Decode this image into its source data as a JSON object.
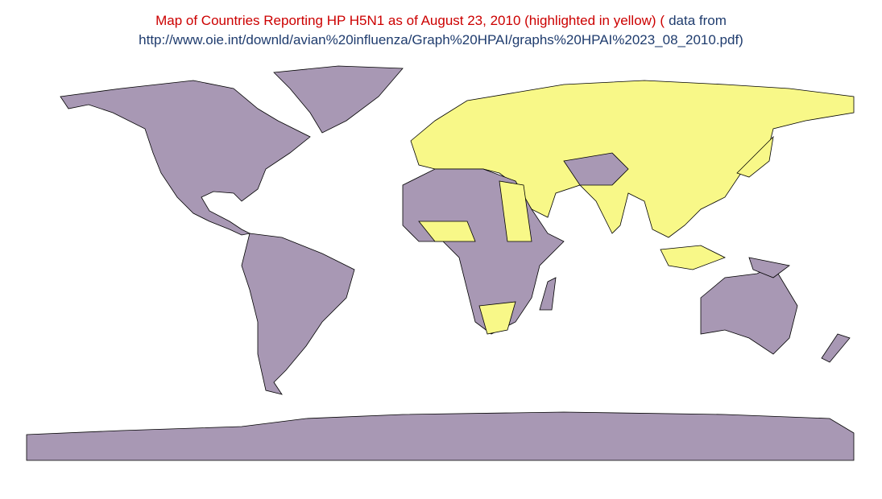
{
  "title": {
    "main": "Map of Countries Reporting HP H5N1 as of August 23, 2010 (highlighted in yellow) (",
    "source_prefix": "data from",
    "source_url": "http://www.oie.int/downld/avian%20influenza/Graph%20HPAI/graphs%20HPAI%2023_08_2010.pdf)"
  }
}
